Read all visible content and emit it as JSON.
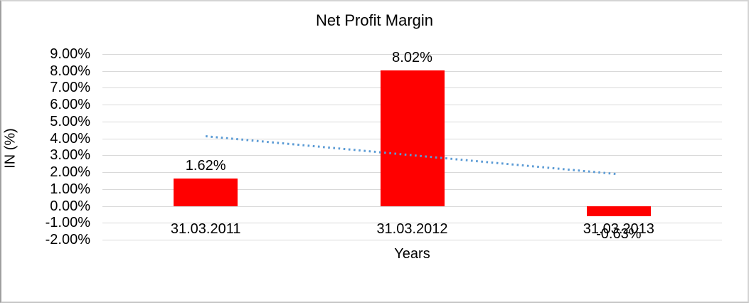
{
  "chart_data": {
    "type": "bar",
    "title": "Net Profit Margin",
    "xlabel": "Years",
    "ylabel": "IN (%)",
    "categories": [
      "31.03.2011",
      "31.03.2012",
      "31.03.2013"
    ],
    "values": [
      1.62,
      8.02,
      -0.63
    ],
    "data_labels": [
      "1.62%",
      "8.02%",
      "-0.63%"
    ],
    "ylim": [
      -2,
      9
    ],
    "ytick_step": 1,
    "ytick_labels": [
      "9.00%",
      "8.00%",
      "7.00%",
      "6.00%",
      "5.00%",
      "4.00%",
      "3.00%",
      "2.00%",
      "1.00%",
      "0.00%",
      "-1.00%",
      "-2.00%"
    ],
    "grid": true,
    "legend": false,
    "bar_color": "#FF0000",
    "gridline_color": "#D9D9D9",
    "trendline": {
      "type": "linear",
      "style": "dotted",
      "color": "#5B9BD5",
      "start_value": 4.13,
      "end_value": 1.88
    }
  }
}
